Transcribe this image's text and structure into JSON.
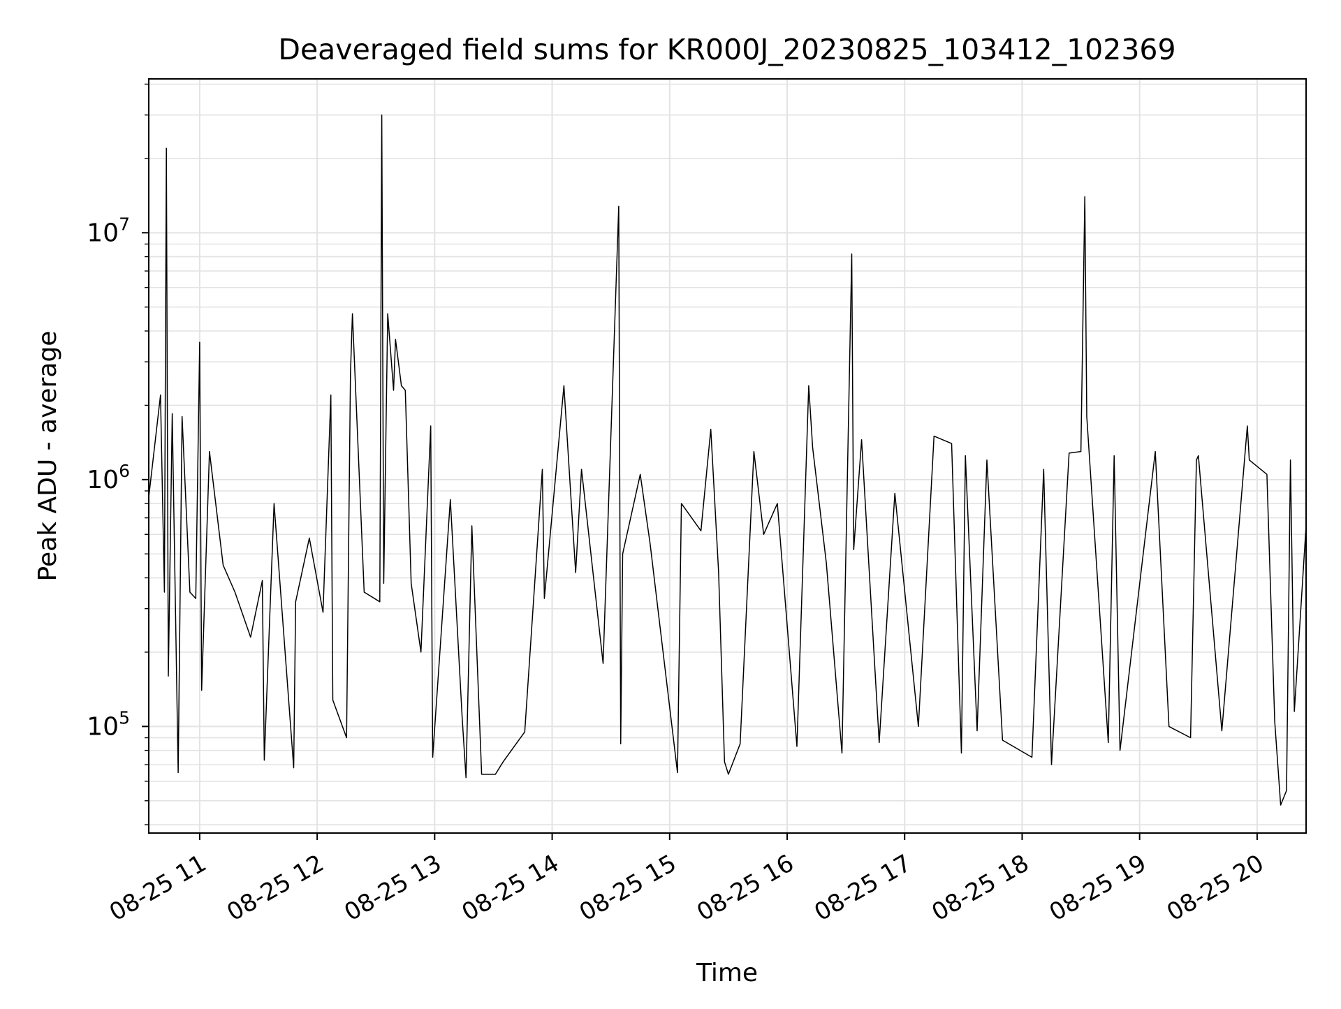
{
  "chart_data": {
    "type": "line",
    "title": "Deaveraged field sums for KR000J_20230825_103412_102369",
    "xlabel": "Time",
    "ylabel": "Peak ADU - average",
    "yscale": "log",
    "xlim": [
      "2023-08-25 10:34",
      "2023-08-25 20:25"
    ],
    "ylim": [
      37000,
      42000000
    ],
    "grid": true,
    "x_ticks": [
      {
        "t": "2023-08-25 11:00",
        "label": "08-25 11"
      },
      {
        "t": "2023-08-25 12:00",
        "label": "08-25 12"
      },
      {
        "t": "2023-08-25 13:00",
        "label": "08-25 13"
      },
      {
        "t": "2023-08-25 14:00",
        "label": "08-25 14"
      },
      {
        "t": "2023-08-25 15:00",
        "label": "08-25 15"
      },
      {
        "t": "2023-08-25 16:00",
        "label": "08-25 16"
      },
      {
        "t": "2023-08-25 17:00",
        "label": "08-25 17"
      },
      {
        "t": "2023-08-25 18:00",
        "label": "08-25 18"
      },
      {
        "t": "2023-08-25 19:00",
        "label": "08-25 19"
      },
      {
        "t": "2023-08-25 20:00",
        "label": "08-25 20"
      }
    ],
    "y_ticks": [
      {
        "value": 100000,
        "base": "10",
        "exp": "5"
      },
      {
        "value": 1000000,
        "base": "10",
        "exp": "6"
      },
      {
        "value": 10000000,
        "base": "10",
        "exp": "7"
      }
    ],
    "series": [
      {
        "color": "#000000",
        "x": [
          "2023-08-25 10:34",
          "2023-08-25 10:40",
          "2023-08-25 10:42",
          "2023-08-25 10:43",
          "2023-08-25 10:44",
          "2023-08-25 10:46",
          "2023-08-25 10:49",
          "2023-08-25 10:51",
          "2023-08-25 10:55",
          "2023-08-25 10:58",
          "2023-08-25 11:00",
          "2023-08-25 11:01",
          "2023-08-25 11:05",
          "2023-08-25 11:12",
          "2023-08-25 11:18",
          "2023-08-25 11:26",
          "2023-08-25 11:32",
          "2023-08-25 11:33",
          "2023-08-25 11:38",
          "2023-08-25 11:48",
          "2023-08-25 11:49",
          "2023-08-25 11:56",
          "2023-08-25 12:03",
          "2023-08-25 12:07",
          "2023-08-25 12:08",
          "2023-08-25 12:15",
          "2023-08-25 12:17",
          "2023-08-25 12:18",
          "2023-08-25 12:24",
          "2023-08-25 12:32",
          "2023-08-25 12:33",
          "2023-08-25 12:34",
          "2023-08-25 12:36",
          "2023-08-25 12:39",
          "2023-08-25 12:40",
          "2023-08-25 12:43",
          "2023-08-25 12:45",
          "2023-08-25 12:48",
          "2023-08-25 12:53",
          "2023-08-25 12:58",
          "2023-08-25 12:59",
          "2023-08-25 13:08",
          "2023-08-25 13:14",
          "2023-08-25 13:16",
          "2023-08-25 13:19",
          "2023-08-25 13:24",
          "2023-08-25 13:31",
          "2023-08-25 13:35",
          "2023-08-25 13:46",
          "2023-08-25 13:55",
          "2023-08-25 13:56",
          "2023-08-25 14:06",
          "2023-08-25 14:12",
          "2023-08-25 14:15",
          "2023-08-25 14:26",
          "2023-08-25 14:34",
          "2023-08-25 14:35",
          "2023-08-25 14:36",
          "2023-08-25 14:45",
          "2023-08-25 14:50",
          "2023-08-25 15:04",
          "2023-08-25 15:06",
          "2023-08-25 15:16",
          "2023-08-25 15:21",
          "2023-08-25 15:25",
          "2023-08-25 15:28",
          "2023-08-25 15:30",
          "2023-08-25 15:36",
          "2023-08-25 15:43",
          "2023-08-25 15:48",
          "2023-08-25 15:55",
          "2023-08-25 16:05",
          "2023-08-25 16:11",
          "2023-08-25 16:13",
          "2023-08-25 16:20",
          "2023-08-25 16:28",
          "2023-08-25 16:33",
          "2023-08-25 16:34",
          "2023-08-25 16:38",
          "2023-08-25 16:47",
          "2023-08-25 16:55",
          "2023-08-25 17:07",
          "2023-08-25 17:15",
          "2023-08-25 17:24",
          "2023-08-25 17:29",
          "2023-08-25 17:31",
          "2023-08-25 17:37",
          "2023-08-25 17:42",
          "2023-08-25 17:50",
          "2023-08-25 18:05",
          "2023-08-25 18:11",
          "2023-08-25 18:15",
          "2023-08-25 18:24",
          "2023-08-25 18:30",
          "2023-08-25 18:32",
          "2023-08-25 18:33",
          "2023-08-25 18:44",
          "2023-08-25 18:47",
          "2023-08-25 18:50",
          "2023-08-25 19:08",
          "2023-08-25 19:15",
          "2023-08-25 19:26",
          "2023-08-25 19:29",
          "2023-08-25 19:30",
          "2023-08-25 19:42",
          "2023-08-25 19:55",
          "2023-08-25 19:56",
          "2023-08-25 20:05",
          "2023-08-25 20:09",
          "2023-08-25 20:12",
          "2023-08-25 20:15",
          "2023-08-25 20:17",
          "2023-08-25 20:19",
          "2023-08-25 20:25"
        ],
        "y": [
          850000,
          2200000,
          350000,
          22000000,
          160000,
          1850000,
          65000,
          1800000,
          350000,
          330000,
          3600000,
          140000,
          1300000,
          450000,
          350000,
          230000,
          390000,
          73000,
          800000,
          68000,
          320000,
          580000,
          290000,
          2200000,
          128000,
          90000,
          2700000,
          4700000,
          350000,
          320000,
          30000000,
          380000,
          4700000,
          2300000,
          3700000,
          2400000,
          2300000,
          380000,
          200000,
          1650000,
          75000,
          830000,
          110000,
          62000,
          650000,
          64000,
          64000,
          72000,
          95000,
          1100000,
          330000,
          2400000,
          420000,
          1100000,
          180000,
          12800000,
          85000,
          500000,
          1050000,
          550000,
          65000,
          800000,
          620000,
          1600000,
          420000,
          72000,
          64000,
          85000,
          1300000,
          600000,
          800000,
          83000,
          2400000,
          1350000,
          460000,
          78000,
          8200000,
          520000,
          1450000,
          86000,
          880000,
          100000,
          1500000,
          1400000,
          78000,
          1250000,
          96000,
          1200000,
          88000,
          75000,
          1100000,
          70000,
          1280000,
          1300000,
          14000000,
          1800000,
          86000,
          1250000,
          80000,
          1300000,
          100000,
          90000,
          1200000,
          1250000,
          96000,
          1650000,
          1200000,
          1050000,
          105000,
          48000,
          55000,
          1200000,
          115000,
          650000
        ]
      }
    ]
  }
}
